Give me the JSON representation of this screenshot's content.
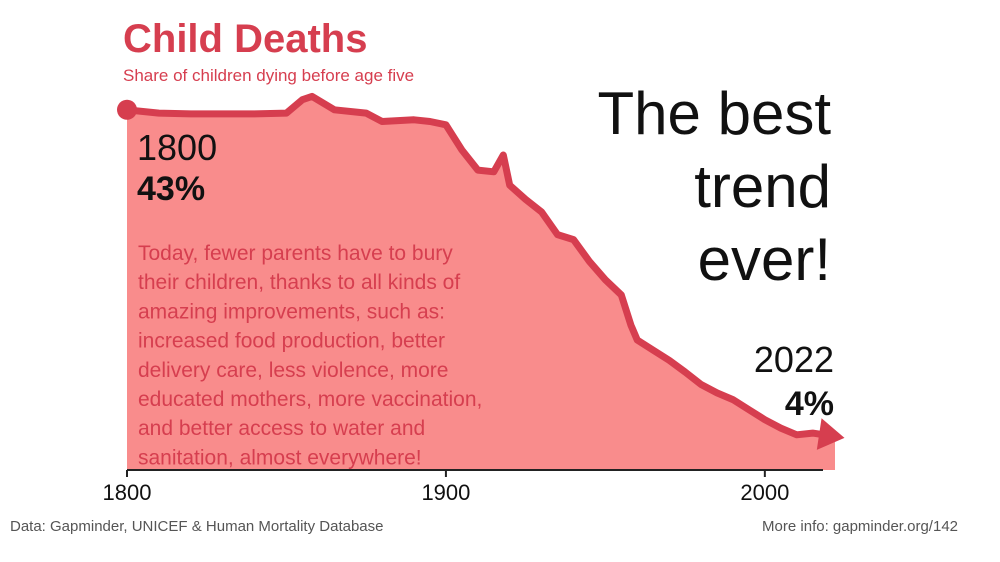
{
  "chart_data": {
    "type": "area",
    "title": "Child Deaths",
    "subtitle": "Share of children dying before age five",
    "headline": [
      "The best",
      "trend",
      "ever!"
    ],
    "annotation": [
      "Today, fewer parents have to bury",
      "their children, thanks to all kinds of",
      "amazing improvements, such as:",
      "increased food production, better",
      "delivery care, less violence, more",
      "educated mothers, more vaccination,",
      "and better access to water and",
      "sanitation, almost everywhere!"
    ],
    "source": "Data: Gapminder, UNICEF & Human Mortality Database",
    "more_info": "More info: gapminder.org/142",
    "x": [
      1800,
      1810,
      1820,
      1830,
      1840,
      1850,
      1855,
      1858,
      1865,
      1875,
      1880,
      1890,
      1895,
      1900,
      1905,
      1910,
      1915,
      1918,
      1920,
      1925,
      1930,
      1935,
      1940,
      1945,
      1950,
      1955,
      1958,
      1960,
      1965,
      1970,
      1975,
      1980,
      1985,
      1990,
      1995,
      2000,
      2005,
      2010,
      2015,
      2022
    ],
    "values": [
      43,
      42.6,
      42.5,
      42.5,
      42.5,
      42.6,
      44.2,
      44.6,
      43,
      42.6,
      41.6,
      41.8,
      41.6,
      41.2,
      38.2,
      35.8,
      35.6,
      37.6,
      34,
      32.3,
      30.8,
      28.1,
      27.5,
      24.9,
      22.7,
      20.9,
      17.3,
      15.5,
      14.3,
      13.1,
      11.7,
      10.2,
      9.2,
      8.4,
      7.2,
      6,
      5,
      4.2,
      4.4,
      4
    ],
    "value_labels": [
      "43%",
      null,
      null,
      null,
      null,
      null,
      null,
      null,
      null,
      null,
      null,
      null,
      null,
      null,
      null,
      null,
      null,
      null,
      null,
      null,
      null,
      null,
      null,
      null,
      null,
      null,
      null,
      null,
      null,
      null,
      null,
      null,
      null,
      null,
      null,
      null,
      null,
      null,
      null,
      "4%"
    ],
    "color": "#d63e4f",
    "fill": "#f98c8c",
    "xlim": [
      1800,
      2022
    ],
    "xticks": [
      1800,
      1900,
      2000
    ],
    "ylim": [
      0,
      45
    ]
  }
}
